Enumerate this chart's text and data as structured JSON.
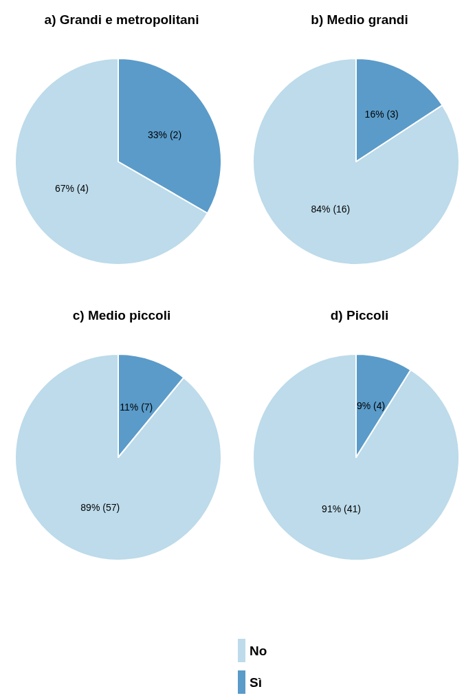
{
  "chart_data": [
    {
      "type": "pie",
      "title": "a) Grandi e metropolitani",
      "categories": [
        null,
        null
      ],
      "values": [
        4,
        2
      ],
      "colors": [
        "#bddbea",
        "#5a9bc9"
      ],
      "value_labels": [
        "67% (4)",
        "33% (2)"
      ]
    },
    {
      "type": "pie",
      "title": "b) Medio grandi",
      "categories": [
        null,
        null
      ],
      "values": [
        16,
        3
      ],
      "colors": [
        "#bddbea",
        "#5a9bc9"
      ],
      "value_labels": [
        "84% (16)",
        "16% (3)"
      ]
    },
    {
      "type": "pie",
      "title": "c) Medio piccoli",
      "categories": [
        null,
        null
      ],
      "values": [
        57,
        7
      ],
      "colors": [
        "#bddbea",
        "#5a9bc9"
      ],
      "value_labels": [
        "89% (57)",
        "11% (7)"
      ]
    },
    {
      "type": "pie",
      "title": "d) Piccoli",
      "categories": [
        "No",
        "Sì"
      ],
      "values": [
        41,
        4
      ],
      "colors": [
        "#bddbea",
        "#5a9bc9"
      ],
      "value_labels": [
        "91% (41)",
        "9% (4)"
      ],
      "legend": "bottom"
    }
  ]
}
